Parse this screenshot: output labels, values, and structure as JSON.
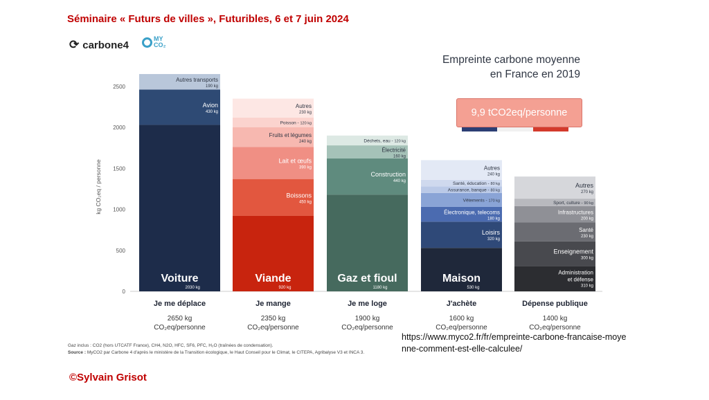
{
  "header": {
    "seminar_title": "Séminaire « Futurs de villes », Futuribles, 6 et 7 juin 2024"
  },
  "logos": {
    "carbone4": "carbone4",
    "myco2": "MY CO₂",
    "carbone4_icon": "carbone4-logo-icon",
    "myco2_icon": "myco2-logo-icon"
  },
  "chart_data": {
    "type": "bar",
    "stacked": true,
    "title_line1": "Empreinte carbone moyenne",
    "title_line2": "en France en 2019",
    "badge": "9,9 tCO2eq/personne",
    "ylabel": "kg CO₂eq / personne",
    "ylim": [
      0,
      2650
    ],
    "yticks": [
      0,
      500,
      1000,
      1500,
      2000,
      2500
    ],
    "grid": false,
    "categories": [
      {
        "name": "Je me déplace",
        "total_line1": "2650 kg",
        "total_line2": "CO₂eq/personne",
        "segments": [
          {
            "label": "Voiture",
            "value_text": "2030 kg",
            "value": 2030,
            "color": "#1d2c4a",
            "text": "#ffffff",
            "big": true
          },
          {
            "label": "Avion",
            "value_text": "430 kg",
            "value": 430,
            "color": "#2e4a74",
            "text": "#ffffff"
          },
          {
            "label": "Autres transports",
            "value_text": "190 kg",
            "value": 190,
            "color": "#b9c7da",
            "text": "#2e3542"
          }
        ]
      },
      {
        "name": "Je mange",
        "total_line1": "2350 kg",
        "total_line2": "CO₂eq/personne",
        "segments": [
          {
            "label": "Viande",
            "value_text": "920 kg",
            "value": 920,
            "color": "#c8240e",
            "text": "#ffffff",
            "big": true
          },
          {
            "label": "Boissons",
            "value_text": "450 kg",
            "value": 450,
            "color": "#e2573f",
            "text": "#ffffff"
          },
          {
            "label": "Lait et œufs",
            "value_text": "390 kg",
            "value": 390,
            "color": "#f08f84",
            "text": "#ffffff"
          },
          {
            "label": "Fruits et légumes",
            "value_text": "240 kg",
            "value": 240,
            "color": "#f7b8b0",
            "text": "#2e3542"
          },
          {
            "label": "Poisson",
            "value_text": "120 kg",
            "inline": true,
            "value": 120,
            "color": "#fbd3ce",
            "text": "#2e3542"
          },
          {
            "label": "Autres",
            "value_text": "230 kg",
            "value": 230,
            "color": "#fde7e4",
            "text": "#2e3542"
          }
        ]
      },
      {
        "name": "Je me loge",
        "total_line1": "1900 kg",
        "total_line2": "CO₂eq/personne",
        "segments": [
          {
            "label": "Gaz et fioul",
            "value_text": "1180 kg",
            "value": 1180,
            "color": "#466a5e",
            "text": "#ffffff",
            "big": true
          },
          {
            "label": "Construction",
            "value_text": "440 kg",
            "value": 440,
            "color": "#5f8b7e",
            "text": "#ffffff"
          },
          {
            "label": "Électricité",
            "value_text": "160 kg",
            "value": 160,
            "color": "#a5c2b8",
            "text": "#2e3542"
          },
          {
            "label": "Déchets, eau",
            "value_text": "120 kg",
            "inline": true,
            "value": 120,
            "color": "#dde9e4",
            "text": "#2e3542"
          }
        ]
      },
      {
        "name": "J'achète",
        "total_line1": "1600 kg",
        "total_line2": "CO₂eq/personne",
        "segments": [
          {
            "label": "Maison",
            "value_text": "530 kg",
            "value": 530,
            "color": "#1f283a",
            "text": "#ffffff",
            "big": true
          },
          {
            "label": "Loisirs",
            "value_text": "320 kg",
            "value": 320,
            "color": "#2f4978",
            "text": "#ffffff"
          },
          {
            "label": "Électronique, telecoms",
            "value_text": "180 kg",
            "value": 180,
            "color": "#4b6bb0",
            "text": "#ffffff"
          },
          {
            "label": "Vêtements",
            "value_text": "170 kg",
            "inline": true,
            "value": 170,
            "color": "#8aa4d6",
            "text": "#2e3542"
          },
          {
            "label": "Assurance, banque",
            "value_text": "80 kg",
            "inline": true,
            "value": 80,
            "color": "#bac9e7",
            "text": "#2e3542"
          },
          {
            "label": "Santé, éducation",
            "value_text": "80 kg",
            "inline": true,
            "value": 80,
            "color": "#cfd9ee",
            "text": "#2e3542"
          },
          {
            "label": "Autres",
            "value_text": "240 kg",
            "value": 240,
            "color": "#e3e9f5",
            "text": "#2e3542"
          }
        ]
      },
      {
        "name": "Dépense publique",
        "total_line1": "1400 kg",
        "total_line2": "CO₂eq/personne",
        "segments": [
          {
            "label": "Administration et défense",
            "label_line1": "Administration",
            "label_line2": "et défense",
            "value_text": "310 kg",
            "value": 310,
            "color": "#2c2d31",
            "text": "#ffffff"
          },
          {
            "label": "Enseignement",
            "value_text": "300 kg",
            "value": 300,
            "color": "#48494e",
            "text": "#ffffff"
          },
          {
            "label": "Santé",
            "value_text": "230 kg",
            "value": 230,
            "color": "#6b6c72",
            "text": "#ffffff"
          },
          {
            "label": "Infrastructures",
            "value_text": "200 kg",
            "value": 200,
            "color": "#8f9096",
            "text": "#ffffff"
          },
          {
            "label": "Sport, culture",
            "value_text": "90 kg",
            "inline": true,
            "value": 90,
            "color": "#b8b9be",
            "text": "#2e3542"
          },
          {
            "label": "Autres",
            "value_text": "270 kg",
            "value": 270,
            "color": "#d6d7db",
            "text": "#2e3542"
          }
        ]
      }
    ]
  },
  "footnote": {
    "gases": "Gaz inclus : CO2 (hors UTCATF France), CH4, N2O, HFC, SF6, PFC, H₂O (traînées de condensation).",
    "source_label": "Source :",
    "source_text": "MyCO2 par Carbone 4 d'après le ministère de la Transition écologique, le Haut Conseil pour le Climat, le CITEPA, Agribalyse V3 et INCA 3."
  },
  "url": "https://www.myco2.fr/fr/empreinte-carbone-francaise-moyenne-comment-est-elle-calculee/",
  "credit": "©Sylvain Grisot"
}
